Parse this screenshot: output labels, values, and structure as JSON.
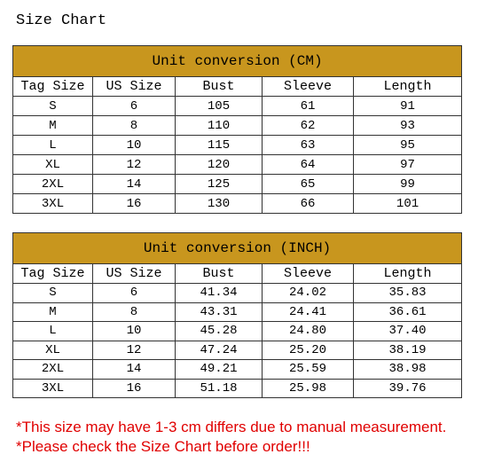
{
  "header": {
    "title": "Size Chart"
  },
  "tables": [
    {
      "title": "Unit conversion (CM)",
      "columns": [
        "Tag Size",
        "US Size",
        "Bust",
        "Sleeve",
        "Length"
      ],
      "rows": [
        [
          "S",
          "6",
          "105",
          "61",
          "91"
        ],
        [
          "M",
          "8",
          "110",
          "62",
          "93"
        ],
        [
          "L",
          "10",
          "115",
          "63",
          "95"
        ],
        [
          "XL",
          "12",
          "120",
          "64",
          "97"
        ],
        [
          "2XL",
          "14",
          "125",
          "65",
          "99"
        ],
        [
          "3XL",
          "16",
          "130",
          "66",
          "101"
        ]
      ]
    },
    {
      "title": "Unit conversion (INCH)",
      "columns": [
        "Tag Size",
        "US Size",
        "Bust",
        "Sleeve",
        "Length"
      ],
      "rows": [
        [
          "S",
          "6",
          "41.34",
          "24.02",
          "35.83"
        ],
        [
          "M",
          "8",
          "43.31",
          "24.41",
          "36.61"
        ],
        [
          "L",
          "10",
          "45.28",
          "24.80",
          "37.40"
        ],
        [
          "XL",
          "12",
          "47.24",
          "25.20",
          "38.19"
        ],
        [
          "2XL",
          "14",
          "49.21",
          "25.59",
          "38.98"
        ],
        [
          "3XL",
          "16",
          "51.18",
          "25.98",
          "39.76"
        ]
      ]
    }
  ],
  "notes": [
    "*This size may have 1-3 cm differs due to manual measurement.",
    "*Please check the Size Chart before order!!!"
  ]
}
